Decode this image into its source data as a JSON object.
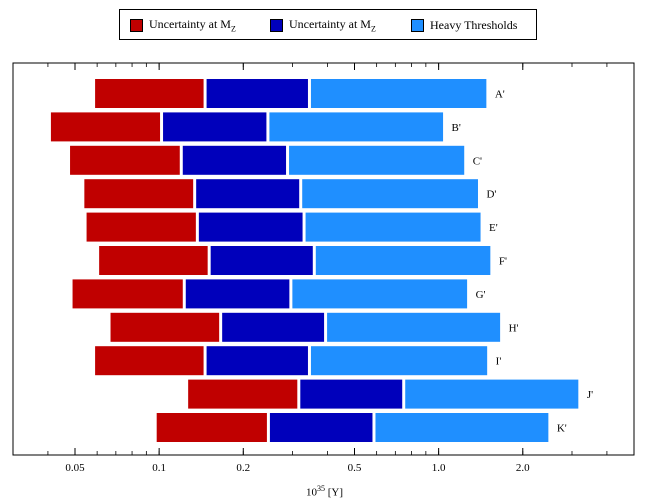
{
  "chart_data": {
    "type": "bar",
    "orientation": "horizontal",
    "stacked": true,
    "x_scale": "log",
    "xlim": [
      0.03,
      5.0
    ],
    "x_ticks": [
      {
        "value": 0.05,
        "label": "0.05"
      },
      {
        "value": 0.1,
        "label": "0.1"
      },
      {
        "value": 0.2,
        "label": "0.2"
      },
      {
        "value": 0.5,
        "label": "0.5"
      },
      {
        "value": 1.0,
        "label": "1.0"
      },
      {
        "value": 2.0,
        "label": "2.0"
      }
    ],
    "xlabel_base": "10",
    "xlabel_exp": "35",
    "xlabel_unit": " [Y]",
    "legend_position": "top-center",
    "categories": [
      "A'",
      "B'",
      "C'",
      "D'",
      "E'",
      "F'",
      "G'",
      "H'",
      "I'",
      "J'",
      "K'"
    ],
    "series": [
      {
        "name": "Uncertainty at M",
        "name_sub": "Z",
        "color": "#c00000",
        "ranges": [
          [
            0.059,
            0.146
          ],
          [
            0.041,
            0.102
          ],
          [
            0.048,
            0.12
          ],
          [
            0.054,
            0.134
          ],
          [
            0.055,
            0.137
          ],
          [
            0.061,
            0.151
          ],
          [
            0.049,
            0.123
          ],
          [
            0.067,
            0.166
          ],
          [
            0.059,
            0.146
          ],
          [
            0.127,
            0.316
          ],
          [
            0.098,
            0.246
          ]
        ]
      },
      {
        "name": "Uncertainty at M",
        "name_sub": "Z",
        "color": "#0000bb",
        "ranges": [
          [
            0.146,
            0.345
          ],
          [
            0.102,
            0.245
          ],
          [
            0.12,
            0.288
          ],
          [
            0.134,
            0.321
          ],
          [
            0.137,
            0.33
          ],
          [
            0.151,
            0.359
          ],
          [
            0.123,
            0.296
          ],
          [
            0.166,
            0.394
          ],
          [
            0.146,
            0.345
          ],
          [
            0.316,
            0.75
          ],
          [
            0.246,
            0.587
          ]
        ]
      },
      {
        "name": "Heavy Thresholds",
        "name_sub": "",
        "color": "#1f8fff",
        "ranges": [
          [
            0.345,
            1.5
          ],
          [
            0.245,
            1.05
          ],
          [
            0.288,
            1.25
          ],
          [
            0.321,
            1.4
          ],
          [
            0.33,
            1.43
          ],
          [
            0.359,
            1.55
          ],
          [
            0.296,
            1.28
          ],
          [
            0.394,
            1.68
          ],
          [
            0.345,
            1.51
          ],
          [
            0.75,
            3.2
          ],
          [
            0.587,
            2.5
          ]
        ]
      }
    ]
  }
}
